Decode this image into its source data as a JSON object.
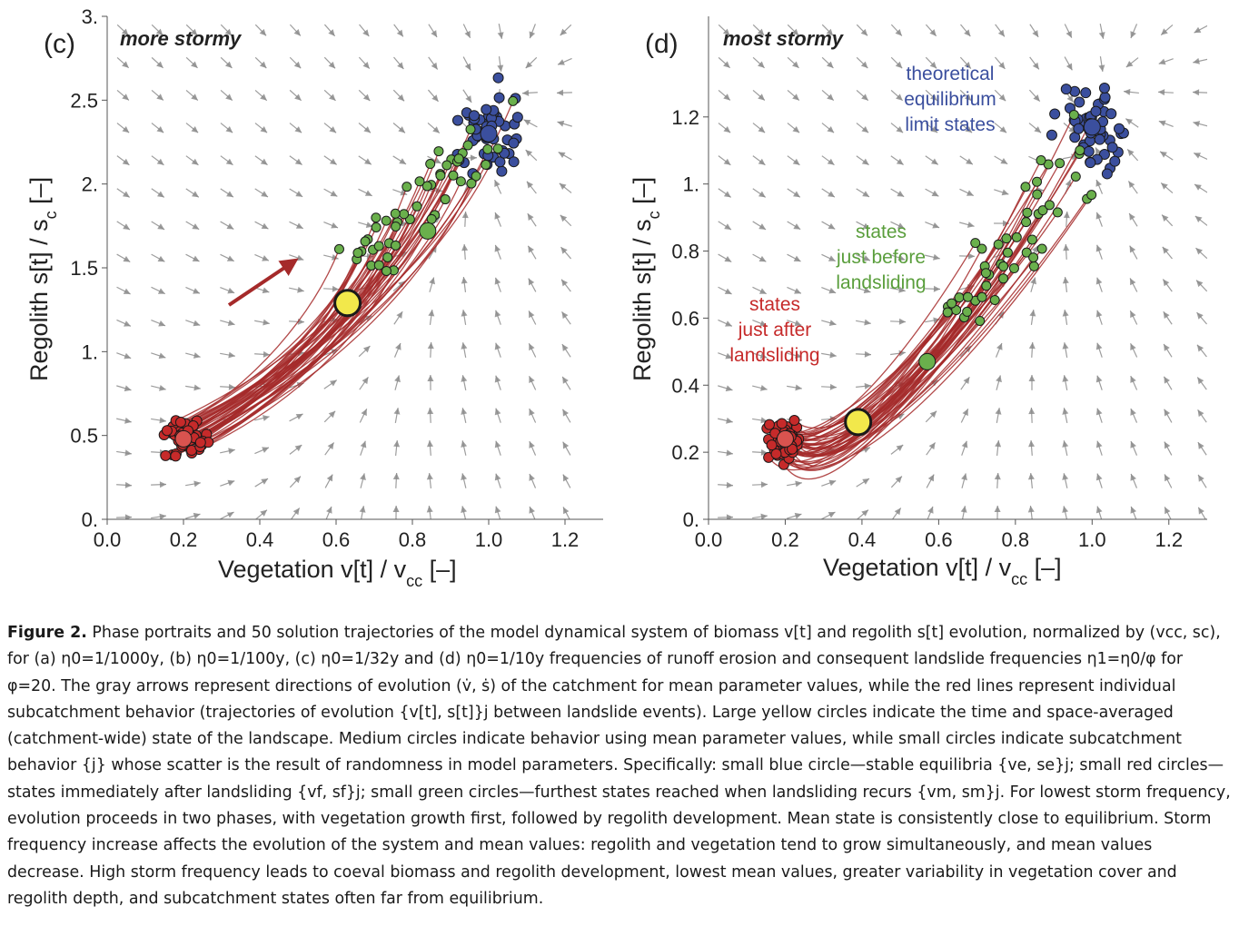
{
  "figure": {
    "panels": [
      {
        "id": "c",
        "letter": "(c)",
        "regime": "more stormy",
        "xlabel": "Vegetation  v[t] / v",
        "xlabel_sub": "cc",
        "xlabel_tail": "  [–]",
        "ylabel": "Regolith  s[t] / s",
        "ylabel_sub": "c",
        "ylabel_tail": "  [–]",
        "xticks": [
          "0.0",
          "0.2",
          "0.4",
          "0.6",
          "0.8",
          "1.0",
          "1.2"
        ],
        "yticks": [
          "0.",
          "0.5",
          "1.",
          "1.5",
          "2.",
          "2.5",
          "3."
        ],
        "annotations": [],
        "colors": {
          "equilibrium": "#3b4f9e",
          "after": "#c62a2a",
          "before": "#6ab04c",
          "mean": "#f2e84b",
          "trajectory": "#a52a2a",
          "arrow": "#8c8c8c"
        }
      },
      {
        "id": "d",
        "letter": "(d)",
        "regime": "most stormy",
        "xlabel": "Vegetation  v[t] / v",
        "xlabel_sub": "cc",
        "xlabel_tail": "  [–]",
        "ylabel": "Regolith  s[t] / s",
        "ylabel_sub": "c",
        "ylabel_tail": "  [–]",
        "xticks": [
          "0.0",
          "0.2",
          "0.4",
          "0.6",
          "0.8",
          "1.0",
          "1.2"
        ],
        "yticks": [
          "0.",
          "0.2",
          "0.4",
          "0.6",
          "0.8",
          "1.",
          "1.2"
        ],
        "annotations": [
          {
            "lines": [
              "theoretical",
              "equilibrium",
              "limit states"
            ],
            "color": "#3b4f9e"
          },
          {
            "lines": [
              "states",
              "just before",
              "landsliding"
            ],
            "color": "#5a9e3c"
          },
          {
            "lines": [
              "states",
              "just after",
              "landsliding"
            ],
            "color": "#c62a2a"
          }
        ],
        "colors": {
          "equilibrium": "#3b4f9e",
          "after": "#c62a2a",
          "before": "#6ab04c",
          "mean": "#f2e84b",
          "trajectory": "#a52a2a",
          "arrow": "#8c8c8c"
        }
      }
    ]
  },
  "caption": {
    "label": "Figure 2.",
    "text": "Phase portraits and 50 solution trajectories of the model dynamical system of biomass v[t] and regolith s[t] evolution, normalized by (vcc, sc), for (a) η0=1/1000y, (b) η0=1/100y, (c) η0=1/32y and (d) η0=1/10y frequencies of runoff erosion and consequent landslide frequencies η1=η0/φ for φ=20. The gray arrows represent directions of evolution (v̇, ṡ) of the catchment for mean parameter values, while the red lines represent individual subcatchment behavior (trajectories of evolution {v[t], s[t]}j between landslide events). Large yellow circles indicate the time and space-averaged (catchment-wide) state of the landscape. Medium circles indicate behavior using mean parameter values, while small circles indicate subcatchment behavior {j} whose scatter is the result of randomness in model parameters. Specifically: small blue circle—stable equilibria {ve, se}j; small red circles—states immediately after landsliding {vf, sf}j; small green circles—furthest states reached when landsliding recurs {vm, sm}j. For lowest storm frequency, evolution proceeds in two phases, with vegetation growth first, followed by regolith development. Mean state is consistently close to equilibrium. Storm frequency increase affects the evolution of the system and mean values: regolith and vegetation tend to grow simultaneously, and mean values decrease. High storm frequency leads to coeval biomass and regolith development, lowest mean values, greater variability in vegetation cover and regolith depth, and subcatchment states often far from equilibrium."
  }
}
